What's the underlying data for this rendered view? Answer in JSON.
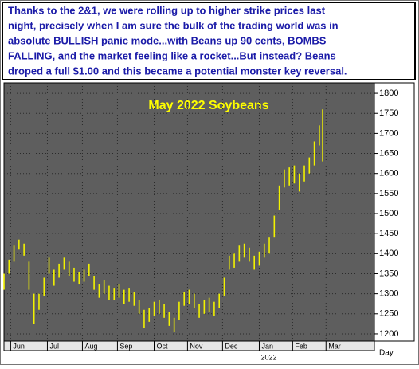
{
  "chart_data": {
    "type": "hlbar",
    "annotation": [
      "Thanks to the 2&1, we were rolling up to higher strike prices last",
      "night, precisely when I am sure the bulk of the trading world was in",
      "absolute BULLISH panic mode...with Beans up 90 cents, BOMBS",
      "FALLING, and the market feeling like a rocket...But instead? Beans",
      "droped a full $1.00 and this became a potential monster key reversal."
    ],
    "title": "May 2022 Soybeans",
    "x_label": "Day",
    "year_label": "2022",
    "color": "#f2f200",
    "grid": true,
    "xlim": [
      0,
      222
    ],
    "xticks": [
      {
        "value": 4,
        "label": "Jun"
      },
      {
        "value": 26,
        "label": "Jul"
      },
      {
        "value": 47,
        "label": "Aug"
      },
      {
        "value": 68,
        "label": "Sep"
      },
      {
        "value": 90,
        "label": "Oct"
      },
      {
        "value": 110,
        "label": "Nov"
      },
      {
        "value": 131,
        "label": "Dec"
      },
      {
        "value": 153,
        "label": "Jan"
      },
      {
        "value": 173,
        "label": "Feb"
      },
      {
        "value": 193,
        "label": "Mar"
      }
    ],
    "ylim": [
      1182,
      1826
    ],
    "yticks": [
      1200,
      1250,
      1300,
      1350,
      1400,
      1450,
      1500,
      1550,
      1600,
      1650,
      1700,
      1750,
      1800
    ],
    "x": [
      0,
      3,
      6,
      9,
      12,
      15,
      18,
      21,
      24,
      27,
      30,
      33,
      36,
      39,
      42,
      45,
      48,
      51,
      54,
      57,
      60,
      63,
      66,
      69,
      72,
      75,
      78,
      81,
      84,
      87,
      90,
      93,
      96,
      99,
      102,
      105,
      108,
      111,
      114,
      117,
      120,
      123,
      126,
      129,
      132,
      135,
      138,
      141,
      144,
      147,
      150,
      153,
      156,
      159,
      162,
      165,
      168,
      171,
      174,
      177,
      180,
      183,
      186,
      189,
      191
    ],
    "high": [
      1350,
      1385,
      1420,
      1435,
      1425,
      1380,
      1300,
      1300,
      1340,
      1390,
      1360,
      1375,
      1390,
      1380,
      1365,
      1355,
      1360,
      1375,
      1345,
      1325,
      1335,
      1320,
      1315,
      1325,
      1310,
      1315,
      1305,
      1285,
      1260,
      1265,
      1280,
      1285,
      1275,
      1255,
      1240,
      1280,
      1305,
      1310,
      1300,
      1275,
      1285,
      1290,
      1280,
      1300,
      1340,
      1395,
      1400,
      1420,
      1425,
      1415,
      1395,
      1405,
      1425,
      1440,
      1495,
      1570,
      1610,
      1615,
      1620,
      1600,
      1620,
      1640,
      1680,
      1720,
      1760
    ],
    "low": [
      1310,
      1350,
      1380,
      1410,
      1395,
      1310,
      1225,
      1260,
      1295,
      1350,
      1320,
      1340,
      1360,
      1345,
      1330,
      1325,
      1330,
      1345,
      1310,
      1290,
      1300,
      1285,
      1285,
      1290,
      1275,
      1280,
      1270,
      1250,
      1215,
      1230,
      1245,
      1250,
      1240,
      1220,
      1205,
      1235,
      1270,
      1275,
      1265,
      1240,
      1250,
      1255,
      1245,
      1265,
      1295,
      1360,
      1365,
      1380,
      1390,
      1380,
      1360,
      1370,
      1390,
      1400,
      1440,
      1510,
      1565,
      1570,
      1575,
      1555,
      1580,
      1600,
      1620,
      1670,
      1630
    ]
  }
}
